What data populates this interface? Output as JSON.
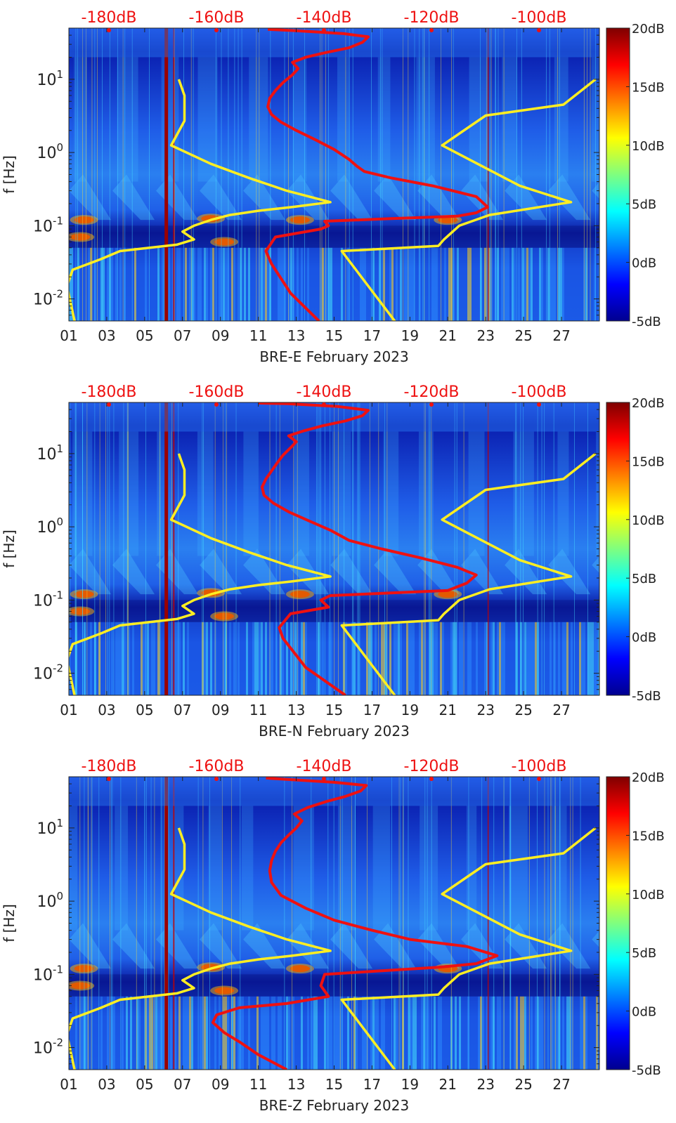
{
  "chart_data": [
    {
      "type": "heatmap",
      "station": "BRE-E",
      "xlabel": "BRE-E February 2023",
      "ylabel": "f [Hz]",
      "yscale": "log",
      "ylim": [
        0.005,
        50
      ],
      "xlim": [
        1,
        29
      ],
      "x_ticks": [
        "01",
        "03",
        "05",
        "07",
        "09",
        "11",
        "13",
        "15",
        "17",
        "19",
        "21",
        "23",
        "25",
        "27"
      ],
      "y_ticks": [
        "10^-2",
        "10^-1",
        "10^0",
        "10^1"
      ],
      "top_axis_labels": [
        "-180dB",
        "-160dB",
        "-140dB",
        "-120dB",
        "-100dB"
      ],
      "colorbar": {
        "min": -5,
        "max": 20,
        "ticks": [
          "20dB",
          "15dB",
          "10dB",
          "5dB",
          "0dB",
          "-5dB"
        ]
      },
      "series": [
        {
          "color": "#ffee22",
          "points": [
            [
              1.3,
              0.005
            ],
            [
              0.9,
              0.015
            ],
            [
              1.2,
              0.025
            ],
            [
              2.7,
              0.035
            ],
            [
              3.7,
              0.045
            ],
            [
              6.7,
              0.055
            ],
            [
              7.6,
              0.065
            ],
            [
              7.0,
              0.083
            ],
            [
              7.6,
              0.1
            ],
            [
              8.5,
              0.12
            ],
            [
              9.5,
              0.14
            ],
            [
              11.0,
              0.16
            ],
            [
              12.8,
              0.18
            ],
            [
              14.8,
              0.21
            ],
            [
              12.5,
              0.3
            ],
            [
              10.5,
              0.45
            ],
            [
              8.5,
              0.7
            ],
            [
              6.4,
              1.25
            ],
            [
              7.1,
              2.7
            ],
            [
              7.1,
              6.0
            ],
            [
              6.8,
              10.0
            ]
          ]
        },
        {
          "color": "#ee1111",
          "points": [
            [
              14.2,
              0.005
            ],
            [
              12.7,
              0.012
            ],
            [
              11.7,
              0.03
            ],
            [
              11.4,
              0.045
            ],
            [
              11.9,
              0.07
            ],
            [
              14.3,
              0.09
            ],
            [
              14.7,
              0.1
            ],
            [
              14.5,
              0.115
            ],
            [
              18.0,
              0.125
            ],
            [
              21.5,
              0.135
            ],
            [
              22.5,
              0.15
            ],
            [
              23.1,
              0.18
            ],
            [
              22.5,
              0.25
            ],
            [
              20.2,
              0.35
            ],
            [
              18.0,
              0.45
            ],
            [
              16.6,
              0.55
            ],
            [
              16.2,
              0.65
            ],
            [
              15.8,
              0.8
            ],
            [
              15.0,
              1.1
            ],
            [
              14.0,
              1.5
            ],
            [
              13.0,
              2.0
            ],
            [
              12.2,
              2.6
            ],
            [
              11.7,
              3.3
            ],
            [
              11.5,
              4.2
            ],
            [
              11.6,
              5.5
            ],
            [
              11.9,
              7.0
            ],
            [
              12.3,
              9.0
            ],
            [
              12.8,
              11.5
            ],
            [
              13.1,
              14.0
            ],
            [
              12.8,
              17.0
            ],
            [
              13.5,
              20.0
            ],
            [
              14.5,
              23.0
            ],
            [
              15.8,
              27.0
            ],
            [
              16.5,
              32.0
            ],
            [
              16.8,
              38.0
            ],
            [
              15.5,
              42.0
            ],
            [
              13.0,
              46.0
            ],
            [
              11.5,
              48.0
            ]
          ]
        },
        {
          "color": "#ffee22",
          "points": [
            [
              18.2,
              0.005
            ],
            [
              15.4,
              0.045
            ],
            [
              20.5,
              0.053
            ],
            [
              20.8,
              0.065
            ],
            [
              21.6,
              0.1
            ],
            [
              23.2,
              0.14
            ],
            [
              27.5,
              0.21
            ],
            [
              24.8,
              0.35
            ],
            [
              20.7,
              1.25
            ],
            [
              23.0,
              3.2
            ],
            [
              27.1,
              4.5
            ],
            [
              28.8,
              10.0
            ]
          ]
        }
      ]
    },
    {
      "type": "heatmap",
      "station": "BRE-N",
      "xlabel": "BRE-N February 2023",
      "ylabel": "f [Hz]",
      "yscale": "log",
      "ylim": [
        0.005,
        50
      ],
      "xlim": [
        1,
        29
      ],
      "x_ticks": [
        "01",
        "03",
        "05",
        "07",
        "09",
        "11",
        "13",
        "15",
        "17",
        "19",
        "21",
        "23",
        "25",
        "27"
      ],
      "y_ticks": [
        "10^-2",
        "10^-1",
        "10^0",
        "10^1"
      ],
      "top_axis_labels": [
        "-180dB",
        "-160dB",
        "-140dB",
        "-120dB",
        "-100dB"
      ],
      "colorbar": {
        "min": -5,
        "max": 20,
        "ticks": [
          "20dB",
          "15dB",
          "10dB",
          "5dB",
          "0dB",
          "-5dB"
        ]
      },
      "series": [
        {
          "color": "#ffee22",
          "points": [
            [
              1.3,
              0.005
            ],
            [
              0.9,
              0.015
            ],
            [
              1.2,
              0.025
            ],
            [
              2.7,
              0.035
            ],
            [
              3.7,
              0.045
            ],
            [
              6.7,
              0.055
            ],
            [
              7.6,
              0.065
            ],
            [
              7.0,
              0.083
            ],
            [
              7.6,
              0.1
            ],
            [
              8.5,
              0.12
            ],
            [
              9.5,
              0.14
            ],
            [
              11.0,
              0.16
            ],
            [
              12.8,
              0.18
            ],
            [
              14.8,
              0.21
            ],
            [
              12.5,
              0.3
            ],
            [
              10.5,
              0.45
            ],
            [
              8.5,
              0.7
            ],
            [
              6.4,
              1.25
            ],
            [
              7.1,
              2.7
            ],
            [
              7.1,
              6.0
            ],
            [
              6.8,
              10.0
            ]
          ]
        },
        {
          "color": "#ee1111",
          "points": [
            [
              15.6,
              0.005
            ],
            [
              13.5,
              0.012
            ],
            [
              12.3,
              0.03
            ],
            [
              12.1,
              0.042
            ],
            [
              12.7,
              0.065
            ],
            [
              14.7,
              0.08
            ],
            [
              14.3,
              0.1
            ],
            [
              14.8,
              0.115
            ],
            [
              18.0,
              0.125
            ],
            [
              21.0,
              0.135
            ],
            [
              22.0,
              0.17
            ],
            [
              22.5,
              0.22
            ],
            [
              21.5,
              0.28
            ],
            [
              19.5,
              0.38
            ],
            [
              17.5,
              0.5
            ],
            [
              15.8,
              0.65
            ],
            [
              14.8,
              0.9
            ],
            [
              13.7,
              1.2
            ],
            [
              12.6,
              1.6
            ],
            [
              11.8,
              2.1
            ],
            [
              11.3,
              2.7
            ],
            [
              11.2,
              3.5
            ],
            [
              11.4,
              4.5
            ],
            [
              11.7,
              5.8
            ],
            [
              12.0,
              7.5
            ],
            [
              12.3,
              9.5
            ],
            [
              12.7,
              12.0
            ],
            [
              13.0,
              14.5
            ],
            [
              12.6,
              17.5
            ],
            [
              13.4,
              20.5
            ],
            [
              14.4,
              24.0
            ],
            [
              15.6,
              28.0
            ],
            [
              16.5,
              33.0
            ],
            [
              16.8,
              39.0
            ],
            [
              15.2,
              44.0
            ],
            [
              12.5,
              48.0
            ],
            [
              11.0,
              49.0
            ]
          ]
        },
        {
          "color": "#ffee22",
          "points": [
            [
              18.2,
              0.005
            ],
            [
              15.4,
              0.045
            ],
            [
              20.5,
              0.053
            ],
            [
              20.8,
              0.065
            ],
            [
              21.6,
              0.1
            ],
            [
              23.2,
              0.14
            ],
            [
              27.5,
              0.21
            ],
            [
              24.8,
              0.35
            ],
            [
              20.7,
              1.25
            ],
            [
              23.0,
              3.2
            ],
            [
              27.1,
              4.5
            ],
            [
              28.8,
              10.0
            ]
          ]
        }
      ]
    },
    {
      "type": "heatmap",
      "station": "BRE-Z",
      "xlabel": "BRE-Z February 2023",
      "ylabel": "f [Hz]",
      "yscale": "log",
      "ylim": [
        0.005,
        50
      ],
      "xlim": [
        1,
        29
      ],
      "x_ticks": [
        "01",
        "03",
        "05",
        "07",
        "09",
        "11",
        "13",
        "15",
        "17",
        "19",
        "21",
        "23",
        "25",
        "27"
      ],
      "y_ticks": [
        "10^-2",
        "10^-1",
        "10^0",
        "10^1"
      ],
      "top_axis_labels": [
        "-180dB",
        "-160dB",
        "-140dB",
        "-120dB",
        "-100dB"
      ],
      "colorbar": {
        "min": -5,
        "max": 20,
        "ticks": [
          "20dB",
          "15dB",
          "10dB",
          "5dB",
          "0dB",
          "-5dB"
        ]
      },
      "series": [
        {
          "color": "#ffee22",
          "points": [
            [
              1.3,
              0.005
            ],
            [
              0.9,
              0.015
            ],
            [
              1.2,
              0.025
            ],
            [
              2.7,
              0.035
            ],
            [
              3.7,
              0.045
            ],
            [
              6.7,
              0.055
            ],
            [
              7.6,
              0.065
            ],
            [
              7.0,
              0.083
            ],
            [
              7.6,
              0.1
            ],
            [
              8.5,
              0.12
            ],
            [
              9.5,
              0.14
            ],
            [
              11.0,
              0.16
            ],
            [
              12.8,
              0.18
            ],
            [
              14.8,
              0.21
            ],
            [
              12.5,
              0.3
            ],
            [
              10.5,
              0.45
            ],
            [
              8.5,
              0.7
            ],
            [
              6.4,
              1.25
            ],
            [
              7.1,
              2.7
            ],
            [
              7.1,
              6.0
            ],
            [
              6.8,
              10.0
            ]
          ]
        },
        {
          "color": "#ee1111",
          "points": [
            [
              12.5,
              0.005
            ],
            [
              11.0,
              0.008
            ],
            [
              10.0,
              0.012
            ],
            [
              9.2,
              0.016
            ],
            [
              8.6,
              0.022
            ],
            [
              8.8,
              0.028
            ],
            [
              10.0,
              0.035
            ],
            [
              12.5,
              0.04
            ],
            [
              14.7,
              0.05
            ],
            [
              14.3,
              0.07
            ],
            [
              14.5,
              0.1
            ],
            [
              17.0,
              0.11
            ],
            [
              20.5,
              0.125
            ],
            [
              22.5,
              0.14
            ],
            [
              23.6,
              0.18
            ],
            [
              22.0,
              0.24
            ],
            [
              19.0,
              0.3
            ],
            [
              17.0,
              0.4
            ],
            [
              15.0,
              0.55
            ],
            [
              13.5,
              0.8
            ],
            [
              12.2,
              1.2
            ],
            [
              11.7,
              1.8
            ],
            [
              11.6,
              2.6
            ],
            [
              11.7,
              3.6
            ],
            [
              11.9,
              4.8
            ],
            [
              12.2,
              6.3
            ],
            [
              12.6,
              8.0
            ],
            [
              13.0,
              10.0
            ],
            [
              13.3,
              12.5
            ],
            [
              12.9,
              15.5
            ],
            [
              13.6,
              19.0
            ],
            [
              14.6,
              23.0
            ],
            [
              15.6,
              27.0
            ],
            [
              16.4,
              32.0
            ],
            [
              16.7,
              38.0
            ],
            [
              15.0,
              42.0
            ],
            [
              12.5,
              46.0
            ],
            [
              11.4,
              48.0
            ]
          ]
        },
        {
          "color": "#ffee22",
          "points": [
            [
              18.2,
              0.005
            ],
            [
              15.4,
              0.045
            ],
            [
              20.5,
              0.053
            ],
            [
              20.8,
              0.065
            ],
            [
              21.6,
              0.1
            ],
            [
              23.2,
              0.14
            ],
            [
              27.5,
              0.21
            ],
            [
              24.8,
              0.35
            ],
            [
              20.7,
              1.25
            ],
            [
              23.0,
              3.2
            ],
            [
              27.1,
              4.5
            ],
            [
              28.8,
              10.0
            ]
          ]
        }
      ]
    }
  ]
}
